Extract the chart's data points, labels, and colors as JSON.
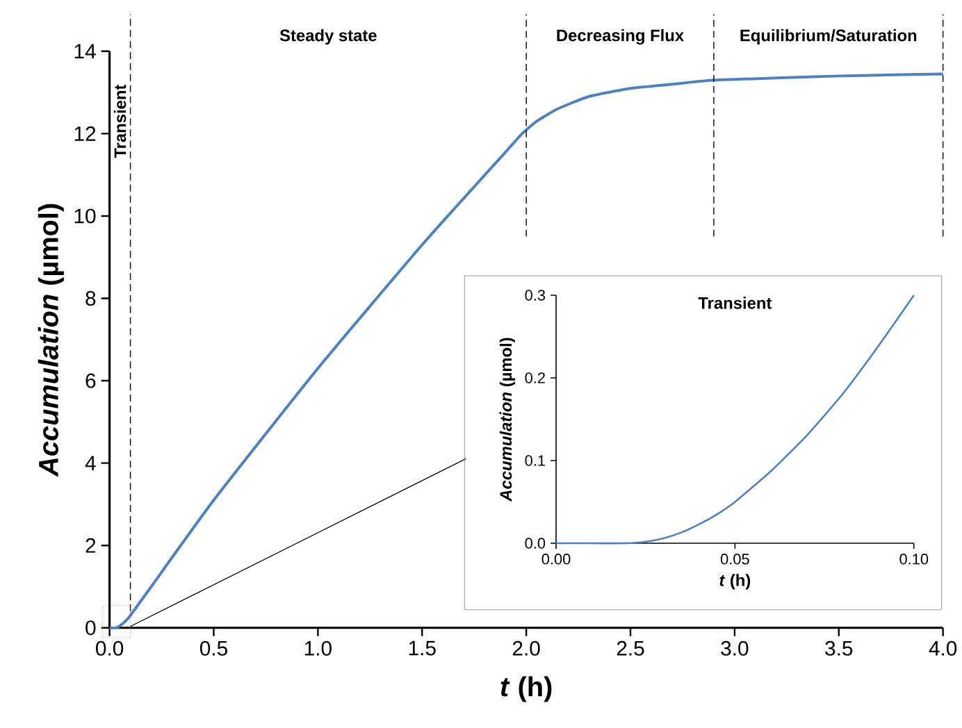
{
  "chart_data": [
    {
      "type": "line",
      "xlabel": "*t* (h)",
      "ylabel": "*Accumulation* (µmol)",
      "x": [
        0,
        0.03,
        0.05,
        0.08,
        0.1,
        0.2,
        0.5,
        1.0,
        1.5,
        1.9,
        1.98,
        2.05,
        2.15,
        2.3,
        2.5,
        2.7,
        2.9,
        3.2,
        3.5,
        3.8,
        4.0
      ],
      "series": [
        {
          "color": "#4f81bd",
          "values": [
            0,
            0,
            0.05,
            0.18,
            0.3,
            1.0,
            3.1,
            6.3,
            9.3,
            11.55,
            12.0,
            12.3,
            12.6,
            12.9,
            13.1,
            13.2,
            13.3,
            13.35,
            13.4,
            13.43,
            13.45
          ]
        }
      ],
      "xlim": [
        0,
        4
      ],
      "ylim": [
        0,
        14
      ],
      "xticks": [
        {
          "value": 0,
          "label": "0.0"
        },
        {
          "value": 0.5,
          "label": "0.5"
        },
        {
          "value": 1,
          "label": "1.0"
        },
        {
          "value": 1.5,
          "label": "1.5"
        },
        {
          "value": 2,
          "label": "2.0"
        },
        {
          "value": 2.5,
          "label": "2.5"
        },
        {
          "value": 3,
          "label": "3.0"
        },
        {
          "value": 3.5,
          "label": "3.5"
        },
        {
          "value": 4,
          "label": "4.0"
        }
      ],
      "yticks": [
        0,
        2,
        4,
        6,
        8,
        10,
        12,
        14
      ],
      "ref_lines": [
        {
          "axis": "x",
          "value": 0.1,
          "color": "#000000",
          "line_style": "dashed"
        },
        {
          "axis": "x",
          "value": 2.0,
          "color": "#000000",
          "line_style": "dashed"
        },
        {
          "axis": "x",
          "value": 2.9,
          "color": "#000000",
          "line_style": "dashed"
        },
        {
          "axis": "x",
          "value": 4.0,
          "color": "#000000",
          "line_style": "dashed"
        }
      ],
      "annotations": [
        "Transient",
        "Steady state",
        "Decreasing Flux",
        "Equilibrium/Saturation"
      ]
    },
    {
      "type": "line",
      "title": "Transient",
      "xlabel": "*t* (h)",
      "ylabel": "*Accumulation* (µmol)",
      "x": [
        0,
        0.01,
        0.02,
        0.025,
        0.03,
        0.035,
        0.04,
        0.045,
        0.05,
        0.06,
        0.07,
        0.08,
        0.09,
        0.1
      ],
      "series": [
        {
          "color": "#4f81bd",
          "values": [
            0,
            0,
            0,
            0.002,
            0.006,
            0.013,
            0.023,
            0.035,
            0.05,
            0.087,
            0.13,
            0.18,
            0.238,
            0.3
          ]
        }
      ],
      "xlim": [
        0,
        0.1
      ],
      "ylim": [
        0,
        0.3
      ],
      "xticks": [
        {
          "value": 0,
          "label": "0.00"
        },
        {
          "value": 0.05,
          "label": "0.05"
        },
        {
          "value": 0.1,
          "label": "0.10"
        }
      ],
      "yticks": [
        {
          "value": 0,
          "label": "0.0"
        },
        {
          "value": 0.1,
          "label": "0.1"
        },
        {
          "value": 0.2,
          "label": "0.2"
        },
        {
          "value": 0.3,
          "label": "0.3"
        }
      ]
    }
  ]
}
